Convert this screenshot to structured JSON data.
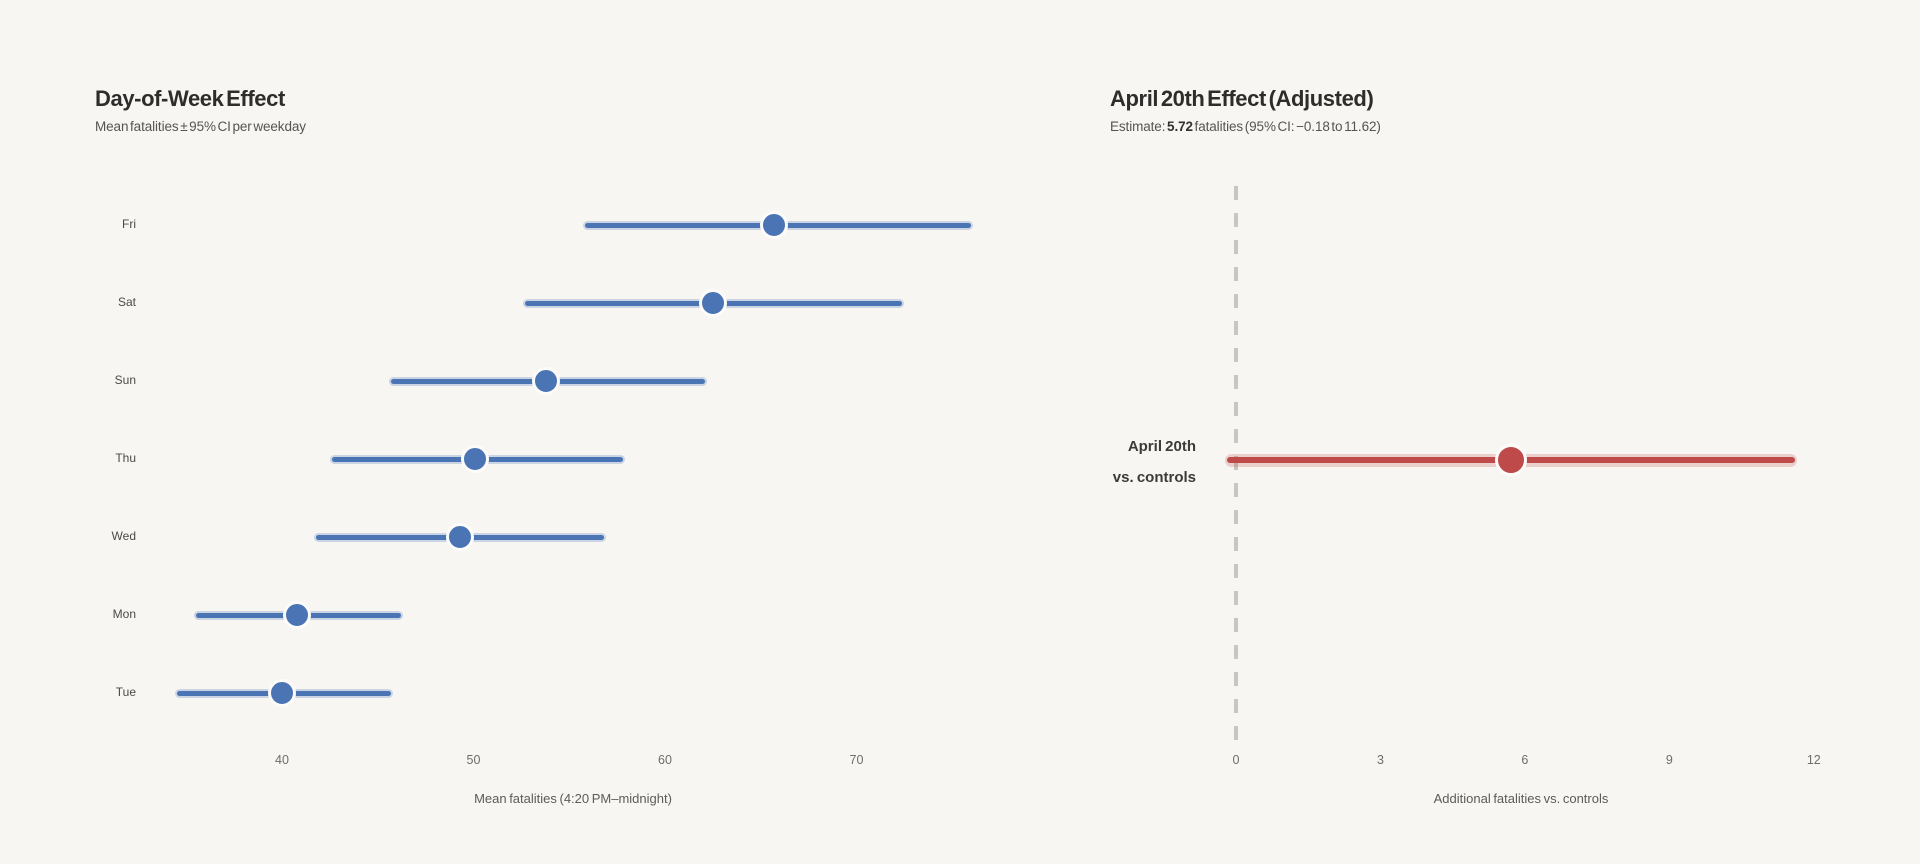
{
  "page": {
    "background_color": "#f7f6f2"
  },
  "chart_data": [
    {
      "type": "scatter",
      "subtype": "horizontal-error-bars",
      "title": "Day-of-Week Effect",
      "subtitle": "Mean fatalities ± 95% CI per weekday",
      "categories": [
        "Fri",
        "Sat",
        "Sun",
        "Thu",
        "Wed",
        "Mon",
        "Tue"
      ],
      "means": [
        65.7,
        62.5,
        53.8,
        50.1,
        49.3,
        40.8,
        40.0
      ],
      "ci_low": [
        55.8,
        52.7,
        45.7,
        42.6,
        41.8,
        35.5,
        34.5
      ],
      "ci_high": [
        76.0,
        72.4,
        62.1,
        57.8,
        56.8,
        46.2,
        45.7
      ],
      "xlabel": "Mean fatalities (4:20 PM–midnight)",
      "xticks": [
        40,
        50,
        60,
        70
      ],
      "xlim": [
        32,
        77
      ],
      "grid": false,
      "legend": "none",
      "point_color": "#4a74b4",
      "band_color": "rgba(74,116,180,0.26)"
    },
    {
      "type": "scatter",
      "subtype": "horizontal-error-bar",
      "title": "April 20th Effect (Adjusted)",
      "subtitle_prefix": "Estimate: ",
      "estimate": "5.72",
      "subtitle_suffix": " fatalities (95% CI: −0.18 to 11.62)",
      "category_lines": [
        "April 20th",
        "vs. controls"
      ],
      "mean": 5.72,
      "ci_low": -0.18,
      "ci_high": 11.62,
      "xlabel": "Additional fatalities vs. controls",
      "xticks": [
        0,
        3,
        6,
        9,
        12
      ],
      "xlim": [
        -0.6,
        12.6
      ],
      "zero_reference_line": true,
      "grid": false,
      "legend": "none",
      "point_color": "#bf4a4a",
      "band_color": "rgba(191,74,74,0.22)"
    }
  ]
}
